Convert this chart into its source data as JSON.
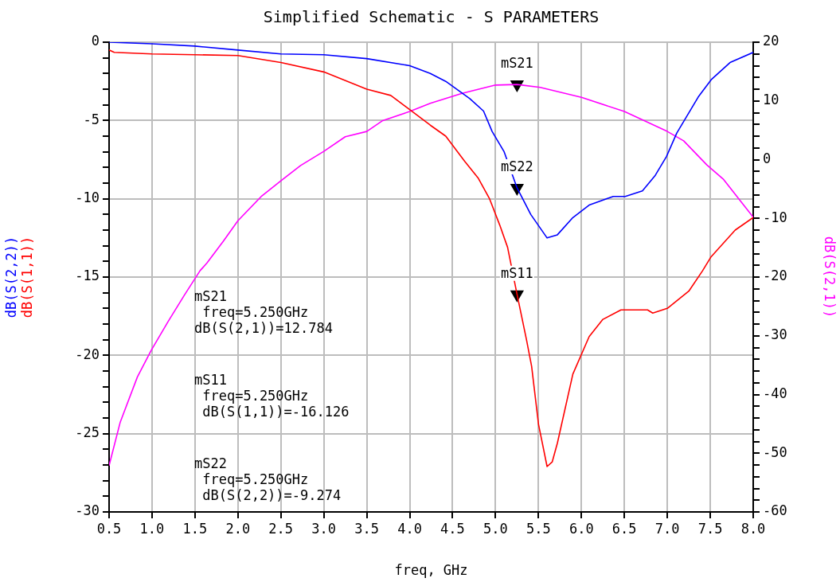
{
  "chart_data": {
    "type": "line",
    "title": "Simplified Schematic - S PARAMETERS",
    "xlabel": "freq, GHz",
    "xlim": [
      0.5,
      8.0
    ],
    "xticks": [
      {
        "value": 0.5,
        "label": "0.5"
      },
      {
        "value": 1.0,
        "label": "1.0"
      },
      {
        "value": 1.5,
        "label": "1.5"
      },
      {
        "value": 2.0,
        "label": "2.0"
      },
      {
        "value": 2.5,
        "label": "2.5"
      },
      {
        "value": 3.0,
        "label": "3.0"
      },
      {
        "value": 3.5,
        "label": "3.5"
      },
      {
        "value": 4.0,
        "label": "4.0"
      },
      {
        "value": 4.5,
        "label": "4.5"
      },
      {
        "value": 5.0,
        "label": "5.0"
      },
      {
        "value": 5.5,
        "label": "5.5"
      },
      {
        "value": 6.0,
        "label": "6.0"
      },
      {
        "value": 6.5,
        "label": "6.5"
      },
      {
        "value": 7.0,
        "label": "7.0"
      },
      {
        "value": 7.5,
        "label": "7.5"
      },
      {
        "value": 8.0,
        "label": "8.0"
      }
    ],
    "ylim": [
      -30,
      0
    ],
    "yticks": [
      -30,
      {
        "value": -29,
        "label": null
      },
      {
        "value": -28,
        "label": null
      },
      {
        "value": -27,
        "label": null
      },
      {
        "value": -26,
        "label": null
      },
      -25,
      {
        "value": -24,
        "label": null
      },
      {
        "value": -23,
        "label": null
      },
      {
        "value": -22,
        "label": null
      },
      {
        "value": -21,
        "label": null
      },
      -20,
      {
        "value": -19,
        "label": null
      },
      {
        "value": -18,
        "label": null
      },
      {
        "value": -17,
        "label": null
      },
      {
        "value": -16,
        "label": null
      },
      -15,
      {
        "value": -14,
        "label": null
      },
      {
        "value": -13,
        "label": null
      },
      {
        "value": -12,
        "label": null
      },
      {
        "value": -11,
        "label": null
      },
      -10,
      {
        "value": -9,
        "label": null
      },
      {
        "value": -8,
        "label": null
      },
      {
        "value": -7,
        "label": null
      },
      {
        "value": -6,
        "label": null
      },
      -5,
      {
        "value": -4,
        "label": null
      },
      {
        "value": -3,
        "label": null
      },
      {
        "value": -2,
        "label": null
      },
      {
        "value": -1,
        "label": null
      },
      0
    ],
    "y2lim": [
      -60,
      20
    ],
    "y2ticks": [
      -60,
      {
        "value": -58,
        "label": null
      },
      {
        "value": -56,
        "label": null
      },
      {
        "value": -54,
        "label": null
      },
      {
        "value": -52,
        "label": null
      },
      -50,
      {
        "value": -48,
        "label": null
      },
      {
        "value": -46,
        "label": null
      },
      {
        "value": -44,
        "label": null
      },
      {
        "value": -42,
        "label": null
      },
      -40,
      {
        "value": -38,
        "label": null
      },
      {
        "value": -36,
        "label": null
      },
      {
        "value": -34,
        "label": null
      },
      {
        "value": -32,
        "label": null
      },
      -30,
      {
        "value": -28,
        "label": null
      },
      {
        "value": -26,
        "label": null
      },
      {
        "value": -24,
        "label": null
      },
      {
        "value": -22,
        "label": null
      },
      -20,
      {
        "value": -18,
        "label": null
      },
      {
        "value": -16,
        "label": null
      },
      {
        "value": -14,
        "label": null
      },
      {
        "value": -12,
        "label": null
      },
      -10,
      {
        "value": -8,
        "label": null
      },
      {
        "value": -6,
        "label": null
      },
      {
        "value": -4,
        "label": null
      },
      {
        "value": -2,
        "label": null
      },
      0,
      {
        "value": 2,
        "label": null
      },
      {
        "value": 4,
        "label": null
      },
      {
        "value": 6,
        "label": null
      },
      {
        "value": 8,
        "label": null
      },
      10,
      {
        "value": 12,
        "label": null
      },
      {
        "value": 14,
        "label": null
      },
      {
        "value": 16,
        "label": null
      },
      {
        "value": 18,
        "label": null
      },
      20
    ],
    "grid": true,
    "legend": false,
    "marker": "none",
    "line_style": "solid",
    "series": [
      {
        "name": "dB(S(2,2))",
        "color": "#0000ff",
        "x": [
          0.5,
          1.0,
          1.5,
          2.0,
          2.5,
          3.0,
          3.5,
          4.0,
          4.24,
          4.42,
          4.7,
          4.86,
          4.96,
          5.1,
          5.25,
          5.41,
          5.6,
          5.72,
          5.9,
          6.09,
          6.37,
          6.51,
          6.71,
          6.86,
          6.99,
          7.11,
          7.36,
          7.51,
          7.73,
          8.0
        ],
        "values": [
          0,
          -0.1,
          -0.25,
          -0.5,
          -0.75,
          -0.8,
          -1.05,
          -1.5,
          -2.0,
          -2.5,
          -3.6,
          -4.4,
          -5.7,
          -7.0,
          -9.3,
          -11.0,
          -12.5,
          -12.3,
          -11.2,
          -10.4,
          -9.85,
          -9.85,
          -9.5,
          -8.5,
          -7.3,
          -5.8,
          -3.5,
          -2.4,
          -1.3,
          -0.65
        ]
      },
      {
        "name": "dB(S(1,1))",
        "color": "#ff0000",
        "x": [
          0.5,
          0.56,
          1.0,
          1.5,
          2.0,
          2.5,
          3.0,
          3.5,
          3.78,
          4.0,
          4.24,
          4.42,
          4.64,
          4.8,
          4.93,
          5.05,
          5.14,
          5.25,
          5.36,
          5.42,
          5.5,
          5.6,
          5.66,
          5.72,
          5.9,
          6.09,
          6.25,
          6.46,
          6.77,
          6.83,
          7.0,
          7.25,
          7.41,
          7.51,
          7.79,
          8.0
        ],
        "values": [
          -0.5,
          -0.65,
          -0.75,
          -0.8,
          -0.85,
          -1.3,
          -1.9,
          -3.0,
          -3.4,
          -4.3,
          -5.3,
          -6.0,
          -7.6,
          -8.7,
          -10.0,
          -11.7,
          -13.1,
          -16.1,
          -19.0,
          -20.7,
          -24.4,
          -27.1,
          -26.8,
          -25.6,
          -21.2,
          -18.8,
          -17.7,
          -17.1,
          -17.1,
          -17.3,
          -17.0,
          -15.9,
          -14.6,
          -13.7,
          -12.0,
          -11.2
        ]
      },
      {
        "name": "dB(S(2,1))",
        "color": "#ff00ff",
        "axis": "y2",
        "x": [
          0.5,
          0.63,
          0.83,
          0.99,
          1.19,
          1.38,
          1.56,
          1.64,
          1.83,
          2.0,
          2.27,
          2.5,
          2.73,
          3.0,
          3.25,
          3.5,
          3.68,
          4.0,
          4.24,
          4.61,
          5.0,
          5.25,
          5.52,
          6.0,
          6.5,
          7.0,
          7.19,
          7.46,
          7.65,
          8.0
        ],
        "values": [
          -52.1,
          -44.7,
          -37.0,
          -32.5,
          -27.5,
          -23.0,
          -18.9,
          -17.6,
          -13.9,
          -10.4,
          -6.3,
          -3.6,
          -1.0,
          1.4,
          3.9,
          4.8,
          6.6,
          8.2,
          9.6,
          11.3,
          12.7,
          12.8,
          12.3,
          10.6,
          8.2,
          4.8,
          3.2,
          -0.9,
          -3.3,
          -9.8
        ]
      },
      {
        "type": "scatter",
        "marker": "triangle",
        "color": "#000000",
        "x": [
          5.25,
          5.25,
          5.25
        ],
        "values": [
          -2.7,
          -9.3,
          -16.1
        ],
        "value_labels": [
          "mS21",
          "mS22",
          "mS11"
        ]
      }
    ],
    "annotations": [
      "mS21\n freq=5.250GHz\ndB(S(2,1))=12.784",
      "mS11\n freq=5.250GHz\n dB(S(1,1))=-16.126",
      "mS22\n freq=5.250GHz\n dB(S(2,2))=-9.274"
    ]
  }
}
